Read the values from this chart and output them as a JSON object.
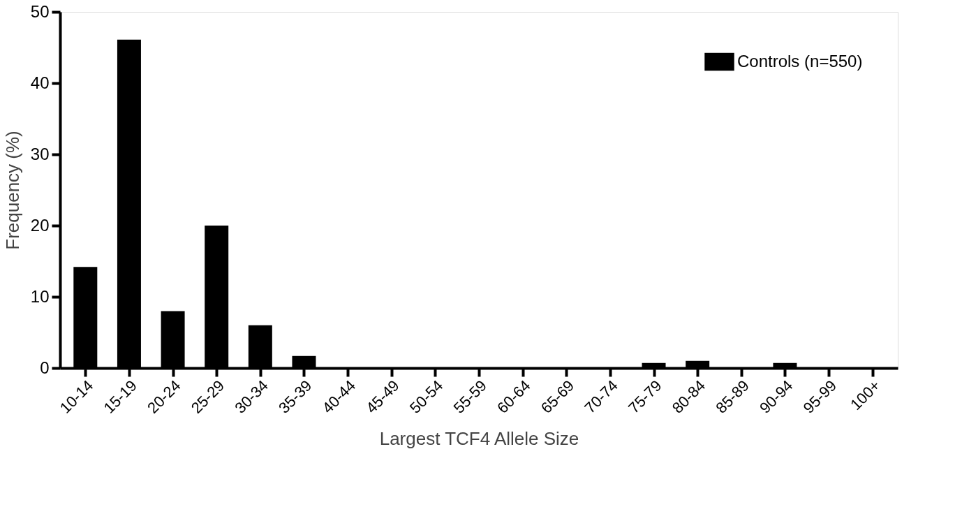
{
  "chart_data": {
    "type": "bar",
    "xlabel": "Largest TCF4 Allele Size",
    "ylabel": "Frequency (%)",
    "categories": [
      "10-14",
      "15-19",
      "20-24",
      "25-29",
      "30-34",
      "35-39",
      "40-44",
      "45-49",
      "50-54",
      "55-59",
      "60-64",
      "65-69",
      "70-74",
      "75-79",
      "80-84",
      "85-89",
      "90-94",
      "95-99",
      "100+"
    ],
    "series": [
      {
        "name": "Controls (n=550)",
        "color": "#000000",
        "values": [
          14.2,
          46.1,
          8.0,
          20.0,
          6.0,
          1.7,
          0,
          0,
          0,
          0,
          0,
          0,
          0,
          0.7,
          1.0,
          0,
          0.7,
          0,
          0
        ]
      }
    ],
    "ylim": [
      0,
      50
    ],
    "yticks": [
      0,
      10,
      20,
      30,
      40,
      50
    ],
    "grid": false,
    "legend": "top right"
  }
}
